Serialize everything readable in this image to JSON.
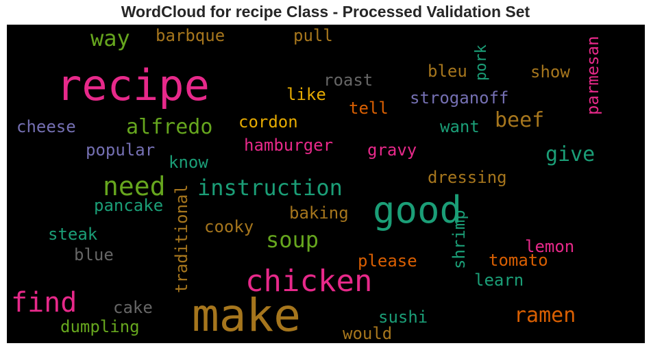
{
  "title": "WordCloud for recipe Class - Processed Validation Set",
  "colors": {
    "pink": "#e7298a",
    "green": "#66a61e",
    "teal": "#1b9e77",
    "gold": "#a6761d",
    "orange": "#d95f02",
    "purple": "#7570b3",
    "gray": "#666666",
    "yellow": "#e6ab02"
  },
  "chart_data": {
    "type": "wordcloud",
    "title": "WordCloud for recipe Class - Processed Validation Set",
    "background": "#000000",
    "words": [
      {
        "text": "recipe",
        "color": "#e7298a",
        "orientation": "horizontal"
      },
      {
        "text": "make",
        "color": "#a6761d",
        "orientation": "horizontal"
      },
      {
        "text": "chicken",
        "color": "#e7298a",
        "orientation": "horizontal"
      },
      {
        "text": "good",
        "color": "#1b9e77",
        "orientation": "horizontal"
      },
      {
        "text": "find",
        "color": "#e7298a",
        "orientation": "horizontal"
      },
      {
        "text": "need",
        "color": "#66a61e",
        "orientation": "horizontal"
      },
      {
        "text": "instruction",
        "color": "#1b9e77",
        "orientation": "horizontal"
      },
      {
        "text": "alfredo",
        "color": "#66a61e",
        "orientation": "horizontal"
      },
      {
        "text": "way",
        "color": "#66a61e",
        "orientation": "horizontal"
      },
      {
        "text": "soup",
        "color": "#66a61e",
        "orientation": "horizontal"
      },
      {
        "text": "ramen",
        "color": "#d95f02",
        "orientation": "horizontal"
      },
      {
        "text": "beef",
        "color": "#a6761d",
        "orientation": "horizontal"
      },
      {
        "text": "give",
        "color": "#1b9e77",
        "orientation": "horizontal"
      },
      {
        "text": "roast",
        "color": "#666666",
        "orientation": "horizontal"
      },
      {
        "text": "stroganoff",
        "color": "#7570b3",
        "orientation": "horizontal"
      },
      {
        "text": "bleu",
        "color": "#a6761d",
        "orientation": "horizontal"
      },
      {
        "text": "show",
        "color": "#a6761d",
        "orientation": "horizontal"
      },
      {
        "text": "like",
        "color": "#e6ab02",
        "orientation": "horizontal"
      },
      {
        "text": "tell",
        "color": "#d95f02",
        "orientation": "horizontal"
      },
      {
        "text": "cordon",
        "color": "#e6ab02",
        "orientation": "horizontal"
      },
      {
        "text": "cheese",
        "color": "#7570b3",
        "orientation": "horizontal"
      },
      {
        "text": "barbque",
        "color": "#a6761d",
        "orientation": "horizontal"
      },
      {
        "text": "pull",
        "color": "#a6761d",
        "orientation": "horizontal"
      },
      {
        "text": "hamburger",
        "color": "#e7298a",
        "orientation": "horizontal"
      },
      {
        "text": "popular",
        "color": "#7570b3",
        "orientation": "horizontal"
      },
      {
        "text": "want",
        "color": "#1b9e77",
        "orientation": "horizontal"
      },
      {
        "text": "gravy",
        "color": "#e7298a",
        "orientation": "horizontal"
      },
      {
        "text": "know",
        "color": "#1b9e77",
        "orientation": "horizontal"
      },
      {
        "text": "dressing",
        "color": "#a6761d",
        "orientation": "horizontal"
      },
      {
        "text": "pancake",
        "color": "#1b9e77",
        "orientation": "horizontal"
      },
      {
        "text": "baking",
        "color": "#a6761d",
        "orientation": "horizontal"
      },
      {
        "text": "cooky",
        "color": "#a6761d",
        "orientation": "horizontal"
      },
      {
        "text": "steak",
        "color": "#1b9e77",
        "orientation": "horizontal"
      },
      {
        "text": "blue",
        "color": "#666666",
        "orientation": "horizontal"
      },
      {
        "text": "lemon",
        "color": "#e7298a",
        "orientation": "horizontal"
      },
      {
        "text": "tomato",
        "color": "#d95f02",
        "orientation": "horizontal"
      },
      {
        "text": "please",
        "color": "#d95f02",
        "orientation": "horizontal"
      },
      {
        "text": "learn",
        "color": "#1b9e77",
        "orientation": "horizontal"
      },
      {
        "text": "cake",
        "color": "#666666",
        "orientation": "horizontal"
      },
      {
        "text": "dumpling",
        "color": "#66a61e",
        "orientation": "horizontal"
      },
      {
        "text": "sushi",
        "color": "#1b9e77",
        "orientation": "horizontal"
      },
      {
        "text": "would",
        "color": "#a6761d",
        "orientation": "horizontal"
      },
      {
        "text": "pork",
        "color": "#1b9e77",
        "orientation": "vertical"
      },
      {
        "text": "parmesan",
        "color": "#e7298a",
        "orientation": "vertical"
      },
      {
        "text": "traditional",
        "color": "#a6761d",
        "orientation": "vertical"
      },
      {
        "text": "shrimp",
        "color": "#1b9e77",
        "orientation": "vertical"
      }
    ]
  }
}
